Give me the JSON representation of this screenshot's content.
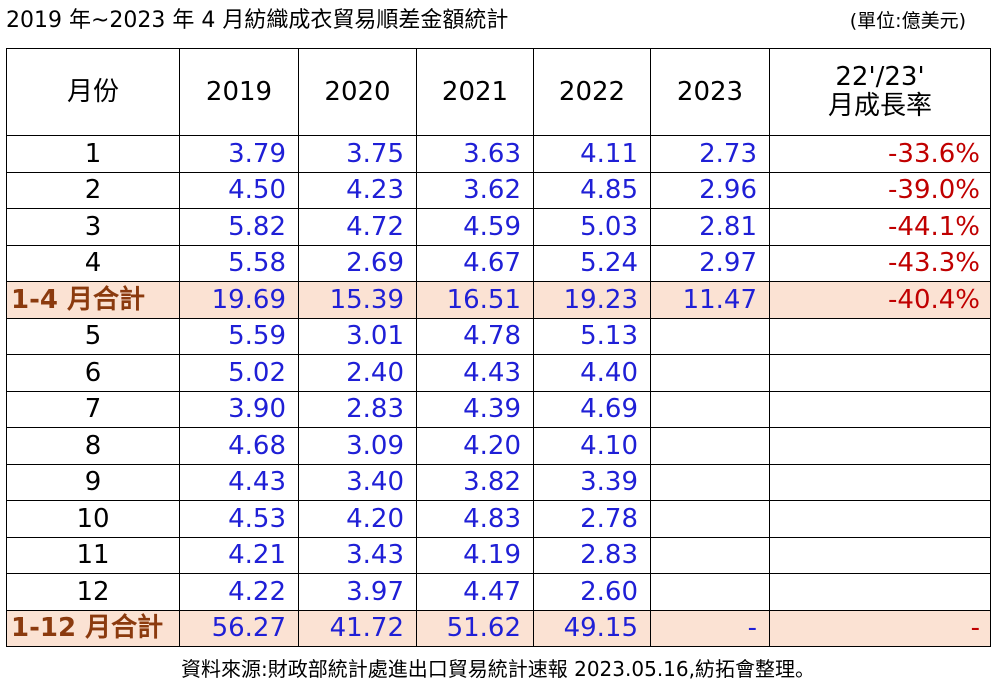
{
  "title": "2019 年~2023 年 4 月紡織成衣貿易順差金額統計",
  "unit": "(單位:億美元)",
  "table": {
    "header": [
      "月份",
      "2019",
      "2020",
      "2021",
      "2022",
      "2023",
      [
        "22'/23'",
        "月成長率"
      ]
    ],
    "rows": [
      {
        "cells": [
          "1",
          "3.79",
          "3.75",
          "3.63",
          "4.11",
          "2.73",
          "-33.6%"
        ]
      },
      {
        "cells": [
          "2",
          "4.50",
          "4.23",
          "3.62",
          "4.85",
          "2.96",
          "-39.0%"
        ]
      },
      {
        "cells": [
          "3",
          "5.82",
          "4.72",
          "4.59",
          "5.03",
          "2.81",
          "-44.1%"
        ]
      },
      {
        "cells": [
          "4",
          "5.58",
          "2.69",
          "4.67",
          "5.24",
          "2.97",
          "-43.3%"
        ]
      },
      {
        "cells": [
          "1-4 月合計",
          "19.69",
          "15.39",
          "16.51",
          "19.23",
          "11.47",
          "-40.4%"
        ],
        "total": true
      },
      {
        "cells": [
          "5",
          "5.59",
          "3.01",
          "4.78",
          "5.13"
        ]
      },
      {
        "cells": [
          "6",
          "5.02",
          "2.40",
          "4.43",
          "4.40"
        ]
      },
      {
        "cells": [
          "7",
          "3.90",
          "2.83",
          "4.39",
          "4.69"
        ]
      },
      {
        "cells": [
          "8",
          "4.68",
          "3.09",
          "4.20",
          "4.10"
        ]
      },
      {
        "cells": [
          "9",
          "4.43",
          "3.40",
          "3.82",
          "3.39"
        ]
      },
      {
        "cells": [
          "10",
          "4.53",
          "4.20",
          "4.83",
          "2.78"
        ]
      },
      {
        "cells": [
          "11",
          "4.21",
          "3.43",
          "4.19",
          "2.83"
        ]
      },
      {
        "cells": [
          "12",
          "4.22",
          "3.97",
          "4.47",
          "2.60"
        ]
      },
      {
        "cells": [
          "1-12 月合計",
          "56.27",
          "41.72",
          "51.62",
          "49.15",
          "-",
          "-"
        ],
        "total": true
      }
    ]
  },
  "footer": "資料來源:財政部統計處進出口貿易統計速報 2023.05.16,紡拓會整理。"
}
